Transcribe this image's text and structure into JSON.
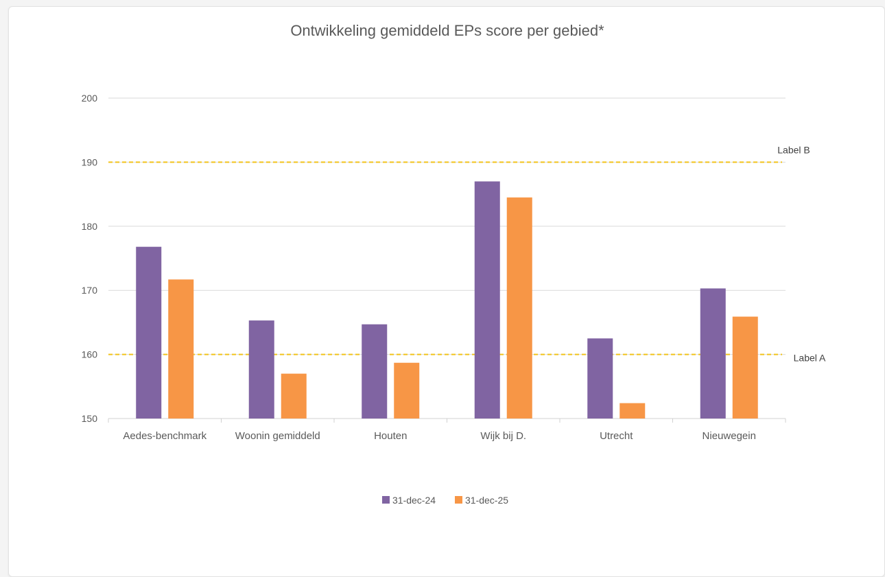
{
  "chart_data": {
    "type": "bar",
    "title": "Ontwikkeling gemiddeld EPs score per gebied*",
    "categories": [
      "Aedes-benchmark",
      "Woonin gemiddeld",
      "Houten",
      "Wijk bij D.",
      "Utrecht",
      "Nieuwegein"
    ],
    "series": [
      {
        "name": "31-dec-24",
        "color": "#8064a2",
        "values": [
          176.8,
          165.3,
          164.7,
          187.0,
          162.5,
          170.3
        ]
      },
      {
        "name": "31-dec-25",
        "color": "#f79646",
        "values": [
          171.7,
          157.0,
          158.7,
          184.5,
          152.4,
          165.9
        ]
      }
    ],
    "ylim": [
      150,
      200
    ],
    "yticks": [
      150,
      160,
      170,
      180,
      190,
      200
    ],
    "xlabel": "",
    "ylabel": "",
    "grid": true,
    "legend_position": "bottom",
    "reference_lines": [
      {
        "label": "Label B",
        "value": 190,
        "color": "#f2c31a"
      },
      {
        "label": "Label A",
        "value": 160,
        "color": "#f2c31a"
      }
    ]
  }
}
